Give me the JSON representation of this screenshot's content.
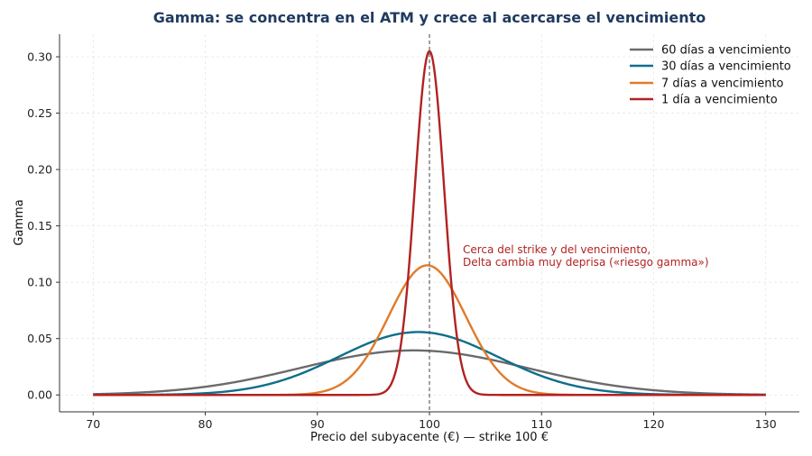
{
  "chart_data": {
    "type": "line",
    "title": "Gamma: se concentra en el ATM y crece al acercarse el vencimiento",
    "xlabel": "Precio del subyacente (€) — strike 100 €",
    "ylabel": "Gamma",
    "xlim": [
      67,
      133
    ],
    "ylim": [
      -0.015,
      0.32
    ],
    "x_ticks": [
      70,
      80,
      90,
      100,
      110,
      120,
      130
    ],
    "y_ticks": [
      "0.00",
      "0.05",
      "0.10",
      "0.15",
      "0.20",
      "0.25",
      "0.30"
    ],
    "grid": true,
    "legend_position": "top-right",
    "strike_line": {
      "x": 100,
      "style": "dashed"
    },
    "series": [
      {
        "name": "60 días a vencimiento",
        "color": "#6b6b6b",
        "peak_x": 98.6,
        "peak_gamma": 0.0395,
        "spread": 10.1
      },
      {
        "name": "30 días a vencimiento",
        "color": "#0e6e8c",
        "peak_x": 99.0,
        "peak_gamma": 0.0558,
        "spread": 7.1
      },
      {
        "name": "7 días a vencimiento",
        "color": "#e07b2a",
        "peak_x": 99.8,
        "peak_gamma": 0.115,
        "spread": 3.45
      },
      {
        "name": "1 día a vencimiento",
        "color": "#b22222",
        "peak_x": 100.0,
        "peak_gamma": 0.305,
        "spread": 1.3
      }
    ],
    "annotation": {
      "lines": [
        "Cerca del strike y del vencimiento,",
        "Delta cambia muy deprisa («riesgo gamma»)"
      ],
      "color": "#b22222"
    }
  },
  "colors": {
    "title": "#1f3a5f",
    "axis": "#333333",
    "grid": "#e6e6e6"
  }
}
